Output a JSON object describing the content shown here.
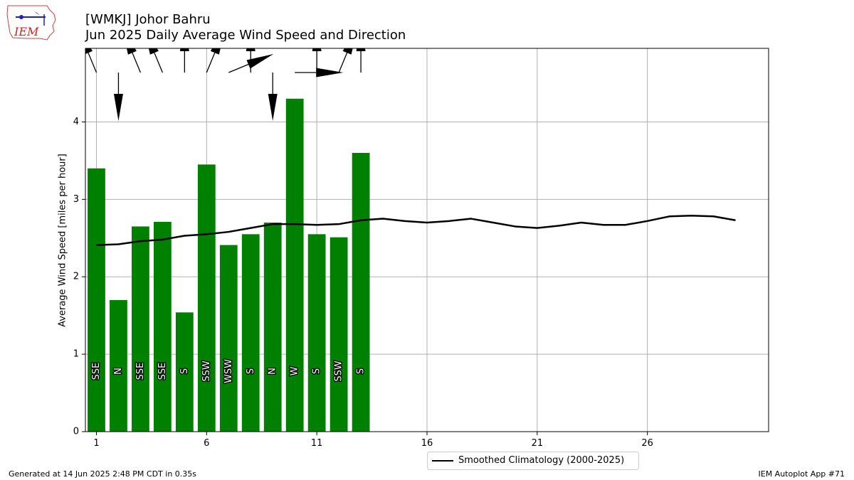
{
  "header": {
    "title_line1": "[WMKJ] Johor Bahru",
    "title_line2": "Jun 2025 Daily Average Wind Speed and Direction"
  },
  "logo": {
    "text": "IEM",
    "icon": "iem-logo-icon"
  },
  "legend": {
    "label": "Smoothed Climatology (2000-2025)"
  },
  "footer": {
    "left": "Generated at 14 Jun 2025 2:48 PM CDT in 0.35s",
    "right": "IEM Autoplot App #71"
  },
  "colors": {
    "bar": "#008000",
    "climatology": "#000000",
    "grid": "#b0b0b0",
    "arrow": "#000000"
  },
  "chart_data": {
    "type": "bar",
    "ylabel": "Average Wind Speed [miles per hour]",
    "xlim": [
      0.5,
      31.5
    ],
    "ylim": [
      0,
      4.95
    ],
    "xticks": [
      1,
      6,
      11,
      16,
      21,
      26
    ],
    "yticks": [
      0,
      1,
      2,
      3,
      4
    ],
    "grid": true,
    "legend_position": "bottom-center",
    "bars": {
      "days": [
        1,
        2,
        3,
        4,
        5,
        6,
        7,
        8,
        9,
        10,
        11,
        12,
        13
      ],
      "values": [
        3.4,
        1.7,
        2.65,
        2.71,
        1.54,
        3.45,
        2.41,
        2.55,
        2.7,
        4.3,
        2.55,
        2.51,
        3.6
      ],
      "direction_labels": [
        "SSE",
        "N",
        "SSE",
        "SSE",
        "S",
        "SSW",
        "WSW",
        "S",
        "N",
        "W",
        "S",
        "SSW",
        "S"
      ],
      "direction_degrees": [
        157.5,
        0,
        157.5,
        157.5,
        180,
        202.5,
        247.5,
        180,
        0,
        270,
        180,
        202.5,
        180
      ]
    },
    "series": [
      {
        "name": "Smoothed Climatology (2000-2025)",
        "x": [
          1,
          2,
          3,
          4,
          5,
          6,
          7,
          8,
          9,
          10,
          11,
          12,
          13,
          14,
          15,
          16,
          17,
          18,
          19,
          20,
          21,
          22,
          23,
          24,
          25,
          26,
          27,
          28,
          29,
          30
        ],
        "values": [
          2.41,
          2.42,
          2.46,
          2.48,
          2.53,
          2.55,
          2.58,
          2.63,
          2.68,
          2.68,
          2.67,
          2.68,
          2.73,
          2.75,
          2.72,
          2.7,
          2.72,
          2.75,
          2.7,
          2.65,
          2.63,
          2.66,
          2.7,
          2.67,
          2.67,
          2.72,
          2.78,
          2.79,
          2.78,
          2.73
        ]
      }
    ]
  }
}
